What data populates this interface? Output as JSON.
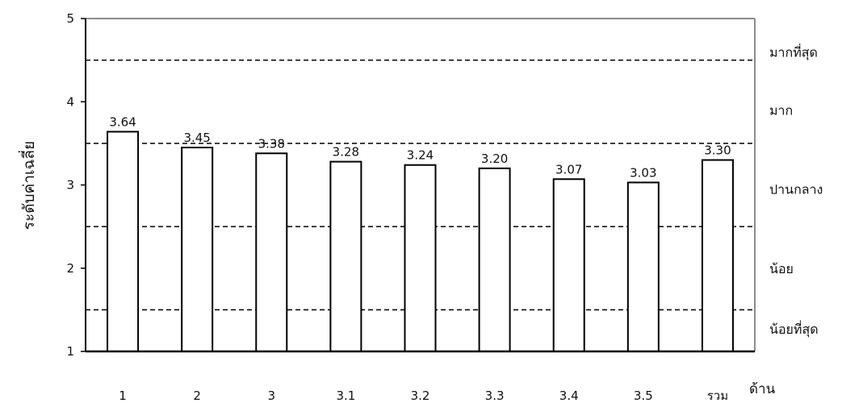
{
  "chart_data": {
    "type": "bar",
    "categories": [
      "1",
      "2",
      "3",
      "3.1",
      "3.2",
      "3.3",
      "3.4",
      "3.5",
      "รวม"
    ],
    "values": [
      3.64,
      3.45,
      3.38,
      3.28,
      3.24,
      3.2,
      3.07,
      3.03,
      3.3
    ],
    "data_labels": [
      "3.64",
      "3.45",
      "3.38",
      "3.28",
      "3.24",
      "3.20",
      "3.07",
      "3.03",
      "3.30"
    ],
    "ylim": [
      1,
      5
    ],
    "yticks": [
      "1",
      "2",
      "3",
      "4",
      "5"
    ],
    "ylabel": "ระดับค่าเฉลี่ย",
    "xlabel": "ด้าน",
    "grid": false,
    "reference_lines": [
      {
        "value": 4.5,
        "style": "dashed"
      },
      {
        "value": 3.5,
        "style": "dashed"
      },
      {
        "value": 2.5,
        "style": "dashed"
      },
      {
        "value": 1.5,
        "style": "dashed"
      }
    ],
    "level_labels": [
      {
        "text": "มากที่สุด",
        "value": 4.6
      },
      {
        "text": "มาก",
        "value": 3.9
      },
      {
        "text": "ปานกลาง",
        "value": 2.95
      },
      {
        "text": "น้อย",
        "value": 2.0
      },
      {
        "text": "น้อยที่สุด",
        "value": 1.27
      }
    ],
    "bar_fill": "#ffffff",
    "bar_stroke": "#000000",
    "plot_border": "#8c8c8c"
  }
}
